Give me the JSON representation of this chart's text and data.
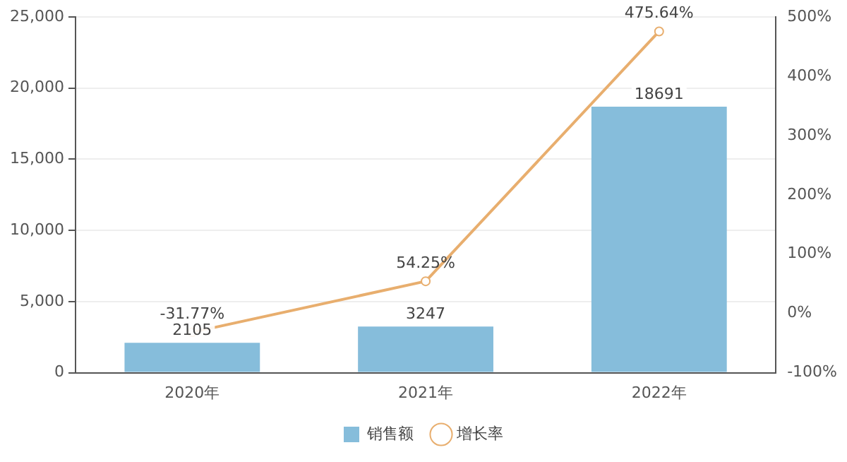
{
  "chart_data": {
    "type": "bar",
    "categories": [
      "2020年",
      "2021年",
      "2022年"
    ],
    "series": [
      {
        "name": "销售额",
        "color": "#86bddb",
        "values": [
          2105,
          3247,
          18691
        ],
        "value_labels": [
          "2105",
          "3247",
          "18691"
        ]
      },
      {
        "name": "增长率",
        "type": "line",
        "axis": "y2",
        "color": "#e8ae6e",
        "values": [
          -31.77,
          54.25,
          475.64
        ],
        "value_labels": [
          "-31.77%",
          "54.25%",
          "475.64%"
        ]
      }
    ],
    "ylim": [
      0,
      25000
    ],
    "yticks": [
      0,
      {
        "value": 5000,
        "label": "5,000"
      },
      {
        "value": 10000,
        "label": "10,000"
      },
      {
        "value": 15000,
        "label": "15,000"
      },
      {
        "value": 20000,
        "label": "20,000"
      },
      {
        "value": 25000,
        "label": "25,000"
      }
    ],
    "y2lim": [
      -100,
      500
    ],
    "y2ticks": [
      {
        "value": -100,
        "label": "-100%"
      },
      {
        "value": 0,
        "label": "0%"
      },
      {
        "value": 100,
        "label": "100%"
      },
      {
        "value": 200,
        "label": "200%"
      },
      {
        "value": 300,
        "label": "300%"
      },
      {
        "value": 400,
        "label": "400%"
      },
      {
        "value": 500,
        "label": "500%"
      }
    ],
    "grid": "y",
    "legend": "bottom",
    "marker": "circle",
    "line_style": "solid"
  }
}
